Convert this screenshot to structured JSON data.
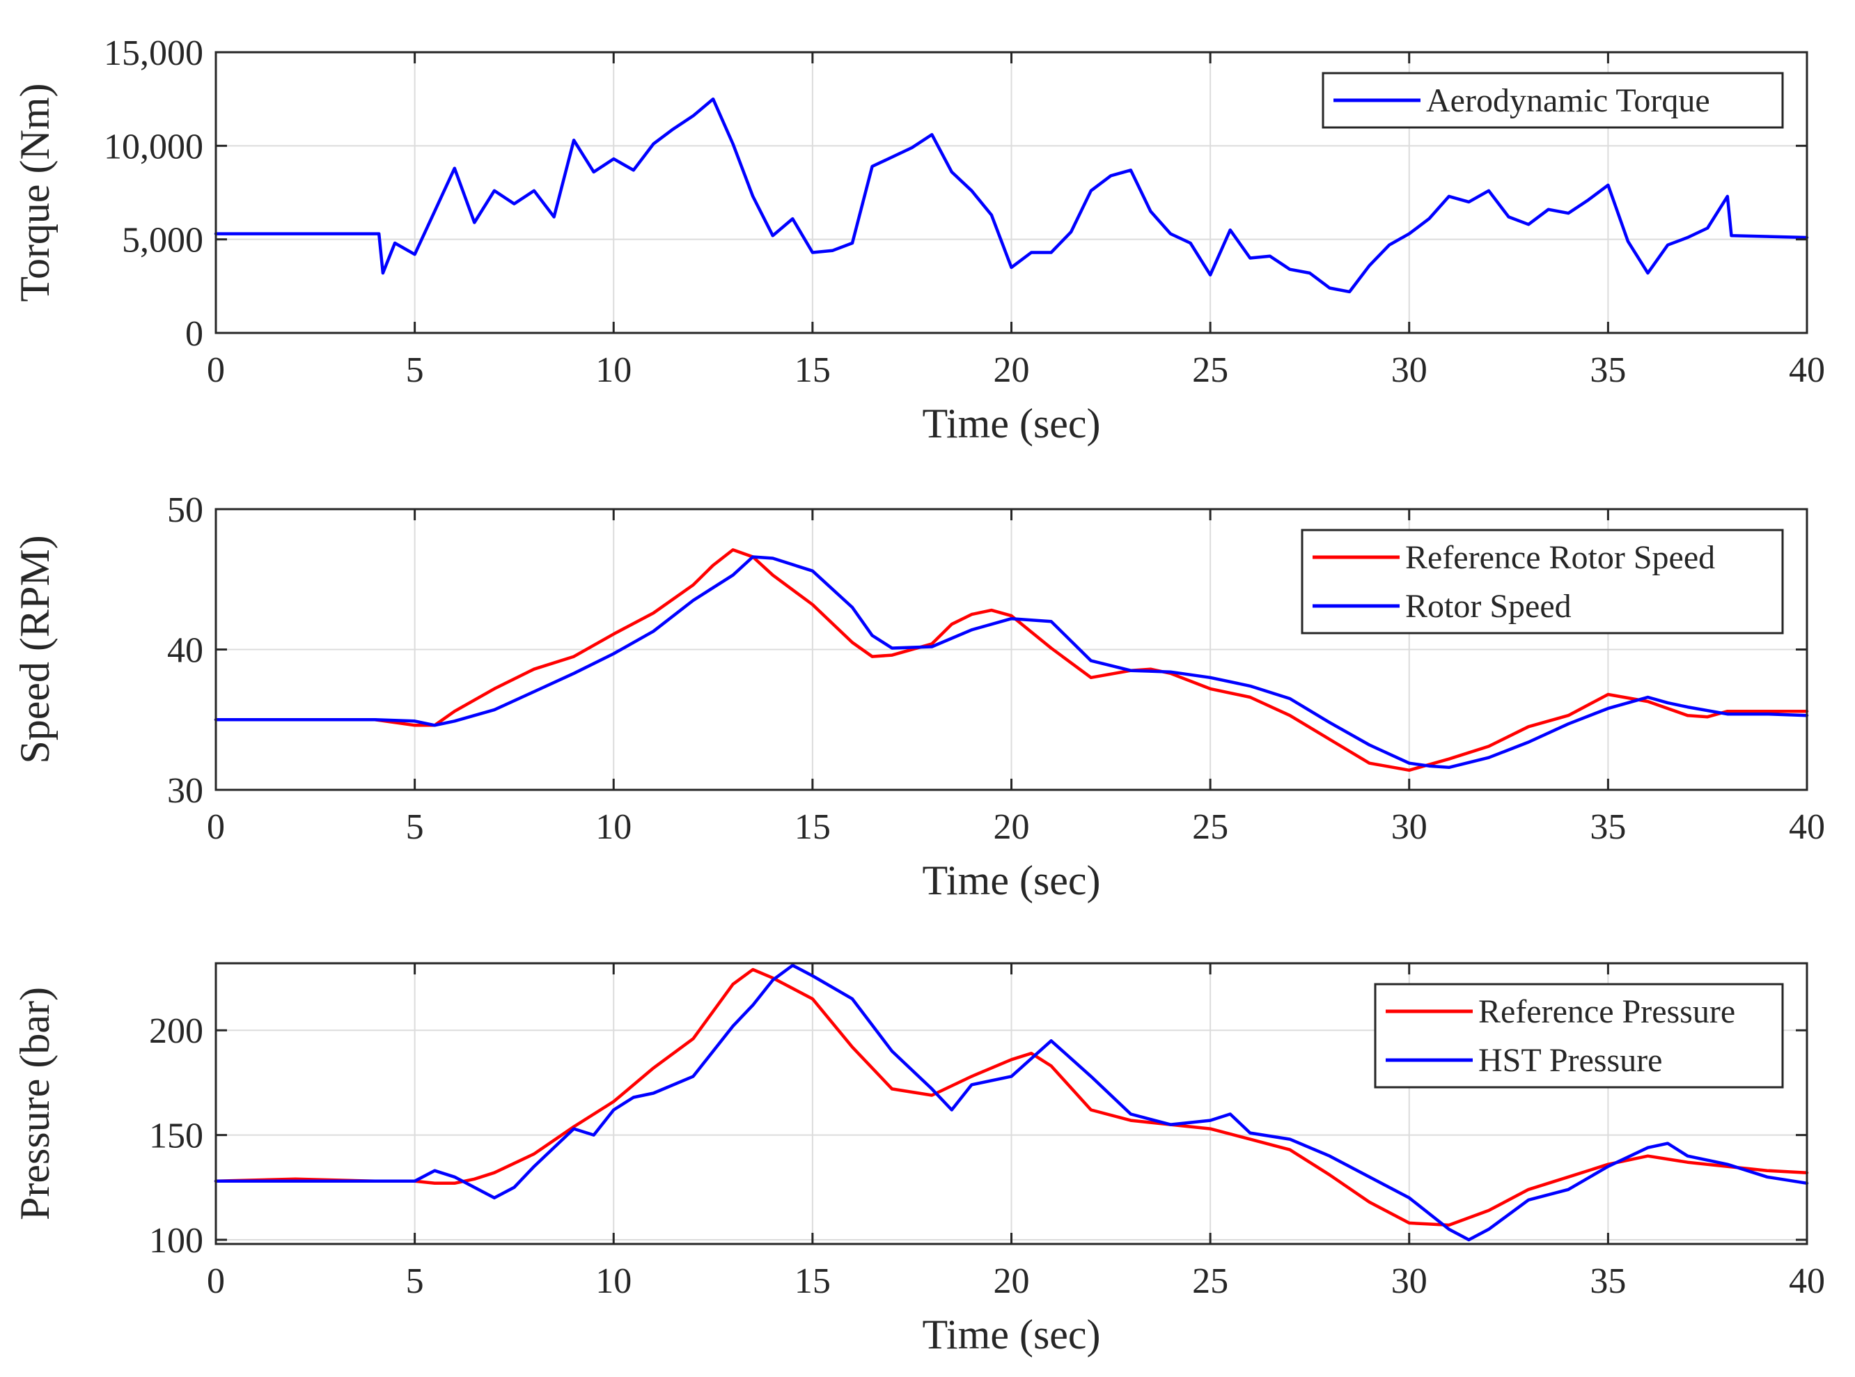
{
  "chart_data": [
    {
      "type": "line",
      "xlabel": "Time (sec)",
      "ylabel": "Torque (Nm)",
      "xlim": [
        0,
        40
      ],
      "ylim": [
        0,
        15000
      ],
      "xticks": [
        0,
        5,
        10,
        15,
        20,
        25,
        30,
        35,
        40
      ],
      "xtick_labels": [
        "0",
        "5",
        "10",
        "15",
        "20",
        "25",
        "30",
        "35",
        "40"
      ],
      "yticks": [
        0,
        5000,
        10000,
        15000
      ],
      "ytick_labels": [
        "0",
        "5,000",
        "10,000",
        "15,000"
      ],
      "grid": true,
      "legend_position": "top-right",
      "series": [
        {
          "name": "Aerodynamic Torque",
          "color": "#0000ff",
          "x": [
            0,
            4.1,
            4.2,
            4.5,
            5,
            5.5,
            6,
            6.5,
            7,
            7.5,
            8,
            8.5,
            9,
            9.5,
            10,
            10.5,
            11,
            11.5,
            12,
            12.5,
            13,
            13.5,
            14,
            14.5,
            15,
            15.5,
            16,
            16.5,
            17,
            17.5,
            18,
            18.5,
            19,
            19.5,
            20,
            20.5,
            21,
            21.5,
            22,
            22.5,
            23,
            23.5,
            24,
            24.5,
            25,
            25.5,
            26,
            26.5,
            27,
            27.5,
            28,
            28.5,
            29,
            29.5,
            30,
            30.5,
            31,
            31.5,
            32,
            32.5,
            33,
            33.5,
            34,
            34.5,
            35,
            35.5,
            36,
            36.5,
            37,
            37.5,
            38,
            38.1,
            40
          ],
          "y": [
            5300,
            5300,
            3200,
            4800,
            4200,
            6500,
            8800,
            5900,
            7600,
            6900,
            7600,
            6200,
            10300,
            8600,
            9300,
            8700,
            10100,
            10900,
            11600,
            12500,
            10100,
            7300,
            5200,
            6100,
            4300,
            4400,
            4800,
            8900,
            9400,
            9900,
            10600,
            8600,
            7600,
            6300,
            3500,
            4300,
            4300,
            5400,
            7600,
            8400,
            8700,
            6500,
            5300,
            4800,
            3100,
            5500,
            4000,
            4100,
            3400,
            3200,
            2400,
            2200,
            3600,
            4700,
            5300,
            6100,
            7300,
            7000,
            7600,
            6200,
            5800,
            6600,
            6400,
            7100,
            7900,
            4900,
            3200,
            4700,
            5100,
            5600,
            7300,
            5200,
            5100
          ]
        }
      ]
    },
    {
      "type": "line",
      "xlabel": "Time (sec)",
      "ylabel": "Speed (RPM)",
      "xlim": [
        0,
        40
      ],
      "ylim": [
        30,
        50
      ],
      "xticks": [
        0,
        5,
        10,
        15,
        20,
        25,
        30,
        35,
        40
      ],
      "xtick_labels": [
        "0",
        "5",
        "10",
        "15",
        "20",
        "25",
        "30",
        "35",
        "40"
      ],
      "yticks": [
        30,
        40,
        50
      ],
      "ytick_labels": [
        "30",
        "40",
        "50"
      ],
      "grid": true,
      "legend_position": "top-right",
      "series": [
        {
          "name": "Reference Rotor Speed",
          "color": "#ff0000",
          "x": [
            0,
            2,
            4,
            5,
            5.5,
            6,
            7,
            8,
            9,
            10,
            11,
            12,
            12.5,
            13,
            13.5,
            14,
            15,
            16,
            16.5,
            17,
            18,
            18.5,
            19,
            19.5,
            20,
            21,
            22,
            23,
            23.5,
            24,
            25,
            26,
            27,
            28,
            29,
            30,
            31,
            32,
            33,
            34,
            35,
            36,
            37,
            37.5,
            38,
            40
          ],
          "y": [
            35,
            35,
            35,
            34.6,
            34.6,
            35.6,
            37.2,
            38.6,
            39.5,
            41.1,
            42.6,
            44.6,
            46,
            47.1,
            46.6,
            45.3,
            43.2,
            40.5,
            39.5,
            39.6,
            40.4,
            41.8,
            42.5,
            42.8,
            42.4,
            40.1,
            38,
            38.5,
            38.6,
            38.3,
            37.2,
            36.6,
            35.3,
            33.6,
            31.9,
            31.4,
            32.2,
            33.1,
            34.5,
            35.3,
            36.8,
            36.3,
            35.3,
            35.2,
            35.6,
            35.6
          ]
        },
        {
          "name": "Rotor Speed",
          "color": "#0000ff",
          "x": [
            0,
            2,
            4,
            5,
            5.5,
            6,
            7,
            8,
            9,
            10,
            11,
            12,
            13,
            13.5,
            14,
            15,
            16,
            16.5,
            17,
            18,
            19,
            20,
            21,
            22,
            23,
            24,
            25,
            26,
            27,
            28,
            29,
            30,
            30.5,
            31,
            32,
            33,
            34,
            35,
            35.5,
            36,
            36.5,
            37,
            38,
            39,
            40
          ],
          "y": [
            35,
            35,
            35,
            34.9,
            34.6,
            34.9,
            35.7,
            37,
            38.3,
            39.7,
            41.3,
            43.5,
            45.3,
            46.6,
            46.5,
            45.6,
            43,
            41,
            40.1,
            40.2,
            41.4,
            42.2,
            42,
            39.2,
            38.5,
            38.4,
            38,
            37.4,
            36.5,
            34.8,
            33.2,
            31.9,
            31.7,
            31.6,
            32.3,
            33.4,
            34.7,
            35.8,
            36.2,
            36.6,
            36.2,
            35.9,
            35.4,
            35.4,
            35.3
          ]
        }
      ]
    },
    {
      "type": "line",
      "xlabel": "Time (sec)",
      "ylabel": "Pressure (bar)",
      "xlim": [
        0,
        40
      ],
      "ylim": [
        98,
        232
      ],
      "xticks": [
        0,
        5,
        10,
        15,
        20,
        25,
        30,
        35,
        40
      ],
      "xtick_labels": [
        "0",
        "5",
        "10",
        "15",
        "20",
        "25",
        "30",
        "35",
        "40"
      ],
      "yticks": [
        100,
        150,
        200
      ],
      "ytick_labels": [
        "100",
        "150",
        "200"
      ],
      "grid": true,
      "legend_position": "top-right",
      "series": [
        {
          "name": "Reference Pressure",
          "color": "#ff0000",
          "x": [
            0,
            2,
            4,
            5,
            5.5,
            6,
            6.5,
            7,
            8,
            9,
            10,
            11,
            12,
            13,
            13.5,
            14,
            15,
            16,
            17,
            18,
            19,
            20,
            20.5,
            21,
            22,
            23,
            24,
            25,
            26,
            27,
            28,
            29,
            30,
            31,
            32,
            33,
            34,
            35,
            36,
            37,
            38,
            39,
            40
          ],
          "y": [
            128,
            129,
            128,
            128,
            127,
            127,
            129,
            132,
            141,
            154,
            166,
            182,
            196,
            222,
            229,
            225,
            215,
            192,
            172,
            169,
            178,
            186,
            189,
            183,
            162,
            157,
            155,
            153,
            148,
            143,
            131,
            118,
            108,
            107,
            114,
            124,
            130,
            136,
            140,
            137,
            135,
            133,
            132
          ]
        },
        {
          "name": "HST Pressure",
          "color": "#0000ff",
          "x": [
            0,
            2,
            4,
            5,
            5.5,
            6,
            7,
            7.5,
            8,
            9,
            9.5,
            10,
            10.5,
            11,
            12,
            13,
            13.5,
            14,
            14.5,
            15,
            16,
            17,
            18,
            18.5,
            19,
            20,
            21,
            22,
            23,
            24,
            25,
            25.5,
            26,
            27,
            28,
            29,
            30,
            31,
            31.5,
            32,
            33,
            34,
            35,
            36,
            36.5,
            37,
            38,
            39,
            40
          ],
          "y": [
            128,
            128,
            128,
            128,
            133,
            130,
            120,
            125,
            135,
            153,
            150,
            162,
            168,
            170,
            178,
            202,
            212,
            224,
            231,
            226,
            215,
            190,
            172,
            162,
            174,
            178,
            195,
            178,
            160,
            155,
            157,
            160,
            151,
            148,
            140,
            130,
            120,
            105,
            100,
            105,
            119,
            124,
            135,
            144,
            146,
            140,
            136,
            130,
            127
          ]
        }
      ]
    }
  ]
}
